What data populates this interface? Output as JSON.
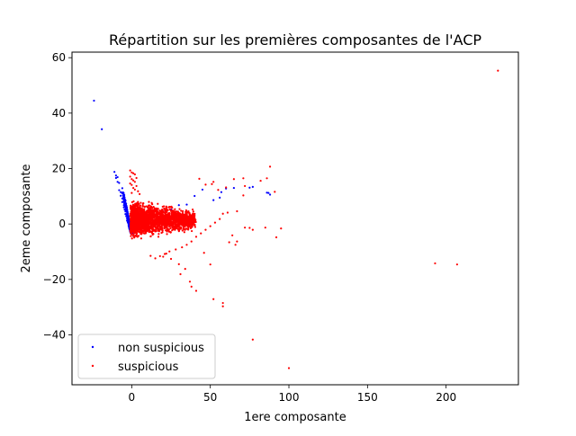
{
  "chart_data": {
    "type": "scatter",
    "title": "Répartition sur les premières composantes de l'ACP",
    "xlabel": "1ere composante",
    "ylabel": "2eme composante",
    "xlim": [
      -38,
      246
    ],
    "ylim": [
      -58,
      62
    ],
    "xticks": [
      0,
      50,
      100,
      150,
      200
    ],
    "yticks": [
      -40,
      -20,
      0,
      20,
      40,
      60
    ],
    "xtick_labels": [
      "0",
      "50",
      "100",
      "150",
      "200"
    ],
    "ytick_labels": [
      "−40",
      "−20",
      "0",
      "20",
      "40",
      "60"
    ],
    "grid": false,
    "legend_position": "lower-left",
    "series": [
      {
        "name": "non suspicious",
        "color": "#0000ff",
        "points": [
          [
            -24,
            44.5
          ],
          [
            -19,
            34.2
          ],
          [
            -11,
            18.8
          ],
          [
            -10,
            17.5
          ],
          [
            -10,
            16.6
          ],
          [
            -9,
            15.2
          ],
          [
            -9,
            16.9
          ],
          [
            -8,
            14.8
          ],
          [
            -7,
            11.5
          ],
          [
            -7,
            10.2
          ],
          [
            -6,
            9.2
          ],
          [
            -6,
            7.9
          ],
          [
            -5,
            6.8
          ],
          [
            -5,
            6.0
          ],
          [
            -4.5,
            5.2
          ],
          [
            -4,
            4.5
          ],
          [
            -4,
            3.6
          ],
          [
            -3.5,
            2.8
          ],
          [
            -3,
            2.1
          ],
          [
            -3,
            1.2
          ],
          [
            -2.5,
            0.6
          ],
          [
            -2,
            0.1
          ],
          [
            -2,
            -0.6
          ],
          [
            -1.5,
            -1.3
          ],
          [
            -1,
            -1.8
          ],
          [
            -0.5,
            -2.4
          ],
          [
            0,
            -2.9
          ],
          [
            0.5,
            -3.3
          ],
          [
            1,
            -3.6
          ],
          [
            -6,
            12.9
          ],
          [
            -8,
            12.2
          ],
          [
            -4,
            8.5
          ],
          [
            -5,
            9.8
          ],
          [
            -3,
            5.0
          ],
          [
            56,
            9.5
          ],
          [
            57,
            11.5
          ],
          [
            60,
            12.8
          ],
          [
            65,
            13.0
          ],
          [
            75,
            13.1
          ],
          [
            77,
            13.4
          ],
          [
            86,
            11.3
          ],
          [
            87,
            11.2
          ],
          [
            88,
            10.6
          ],
          [
            40,
            10.1
          ],
          [
            45,
            12.4
          ],
          [
            52,
            8.6
          ],
          [
            30,
            6.8
          ],
          [
            20,
            4.6
          ],
          [
            25,
            5.2
          ],
          [
            35,
            7.0
          ],
          [
            15,
            3.0
          ],
          [
            10,
            1.8
          ],
          [
            8,
            0.9
          ],
          [
            5,
            -0.5
          ]
        ]
      },
      {
        "name": "suspicious",
        "color": "#ff0000",
        "points": [
          [
            233,
            55.3
          ],
          [
            193,
            -14.2
          ],
          [
            207,
            -14.6
          ],
          [
            77,
            -41.7
          ],
          [
            100,
            -52.0
          ],
          [
            58,
            -28.5
          ],
          [
            58,
            -29.7
          ],
          [
            52,
            -27.1
          ],
          [
            41,
            -24.1
          ],
          [
            38,
            -22.6
          ],
          [
            37,
            -20.8
          ],
          [
            31,
            -18.1
          ],
          [
            34,
            -16.2
          ],
          [
            30,
            -14.5
          ],
          [
            25,
            -12.6
          ],
          [
            20,
            -11.8
          ],
          [
            22,
            -10.7
          ],
          [
            50,
            -14.6
          ],
          [
            46,
            -10.4
          ],
          [
            88,
            20.7
          ],
          [
            91,
            11.6
          ],
          [
            86,
            16.5
          ],
          [
            82,
            15.6
          ],
          [
            71,
            16.5
          ],
          [
            65,
            16.2
          ],
          [
            72,
            13.7
          ],
          [
            60,
            13.2
          ],
          [
            55,
            12.3
          ],
          [
            52,
            15.2
          ],
          [
            51,
            14.4
          ],
          [
            47,
            14.2
          ],
          [
            43,
            16.3
          ],
          [
            92,
            -4.8
          ],
          [
            95,
            -1.6
          ],
          [
            85,
            -1.3
          ],
          [
            77,
            -2.1
          ],
          [
            75,
            -1.4
          ],
          [
            72,
            -1.3
          ],
          [
            67,
            -6.3
          ],
          [
            66,
            -7.5
          ],
          [
            62,
            -6.6
          ],
          [
            64,
            -4.1
          ],
          [
            71,
            10.3
          ],
          [
            67,
            4.6
          ],
          [
            61,
            4.1
          ],
          [
            58,
            3.7
          ],
          [
            56,
            1.8
          ],
          [
            53,
            0.5
          ],
          [
            50,
            -0.8
          ],
          [
            47,
            -2.1
          ],
          [
            44,
            -3.4
          ],
          [
            41,
            -4.6
          ],
          [
            38,
            -6.3
          ],
          [
            35,
            -7.5
          ],
          [
            32,
            -8.4
          ],
          [
            28,
            -9.2
          ],
          [
            24,
            -9.9
          ],
          [
            21,
            -10.8
          ],
          [
            18,
            -11.6
          ],
          [
            15,
            -12.4
          ],
          [
            12,
            -11.5
          ],
          [
            -1,
            19.3
          ],
          [
            0,
            18.6
          ],
          [
            1,
            18.3
          ],
          [
            2,
            17.9
          ],
          [
            -1,
            17.1
          ],
          [
            3,
            16.6
          ],
          [
            0,
            16.2
          ],
          [
            1,
            15.7
          ],
          [
            2,
            15.2
          ],
          [
            -1,
            14.6
          ],
          [
            0,
            14.1
          ],
          [
            3,
            13.7
          ],
          [
            1,
            13.0
          ],
          [
            2,
            12.4
          ],
          [
            4,
            11.8
          ],
          [
            0,
            11.2
          ],
          [
            5,
            10.8
          ]
        ]
      }
    ],
    "dense_cluster": {
      "series": "suspicious",
      "x_range": [
        0,
        40
      ],
      "y_range": [
        -6,
        12
      ],
      "approx_points": 2500
    }
  }
}
